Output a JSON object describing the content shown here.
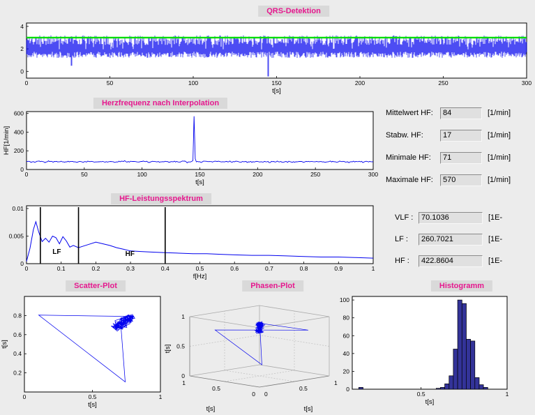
{
  "colors": {
    "window_bg": "#ececec",
    "plot_bg": "#ffffff",
    "title_fg": "#e6188e",
    "title_bg": "#d9d9d9",
    "signal_blue": "#0000ee",
    "threshold_green": "#00dd00",
    "band_line_black": "#000000",
    "band_label_red": "#ff0000",
    "hist_fill": "#333399"
  },
  "titles": {
    "qrs": "QRS-Detektion",
    "hr": "Herzfrequenz nach Interpolation",
    "spectrum": "HF-Leistungsspektrum",
    "scatter": "Scatter-Plot",
    "phase": "Phasen-Plot",
    "hist": "Histogramm"
  },
  "hr_stats": {
    "rows": [
      {
        "label": "Mittelwert HF:",
        "value": "84",
        "unit": "[1/min]"
      },
      {
        "label": "Stabw. HF:",
        "value": "17",
        "unit": "[1/min]"
      },
      {
        "label": "Minimale HF:",
        "value": "71",
        "unit": "[1/min]"
      },
      {
        "label": "Maximale HF:",
        "value": "570",
        "unit": "[1/min]"
      }
    ]
  },
  "spectrum_stats": {
    "rows": [
      {
        "label": "VLF :",
        "value": "70.1036",
        "unit": "[1E-"
      },
      {
        "label": "LF :",
        "value": "260.7021",
        "unit": "[1E-"
      },
      {
        "label": "HF :",
        "value": "422.8604",
        "unit": "[1E-"
      }
    ]
  },
  "chart_data": [
    {
      "id": "qrs",
      "type": "line",
      "title": "QRS-Detektion",
      "xlabel": "t[s]",
      "xlim": [
        0,
        300
      ],
      "xticks": [
        0,
        50,
        100,
        150,
        200,
        250,
        300
      ],
      "ylim": [
        -0.6,
        4.3
      ],
      "yticks": [
        0,
        2,
        4
      ],
      "duration_s": 300,
      "heart_rate_bpm": 84,
      "baseline_range": [
        1.2,
        1.75
      ],
      "peak_range": [
        2.35,
        3.2
      ],
      "threshold": 3.0,
      "artifacts": [
        {
          "t": 27,
          "min": 0.5
        },
        {
          "t": 145,
          "min": -0.45
        }
      ]
    },
    {
      "id": "hr",
      "type": "line",
      "title": "Herzfrequenz nach Interpolation",
      "xlabel": "t[s]",
      "ylabel": "HF[1/min]",
      "xlim": [
        0,
        300
      ],
      "xticks": [
        0,
        50,
        100,
        150,
        200,
        250,
        300
      ],
      "ylim": [
        0,
        620
      ],
      "yticks": [
        0,
        200,
        400,
        600
      ],
      "mean": 84,
      "std": 17,
      "min": 71,
      "max": 570,
      "spike": {
        "t": 145,
        "value": 570
      },
      "range": [
        71,
        110
      ]
    },
    {
      "id": "spectrum",
      "type": "line",
      "title": "HF-Leistungsspektrum",
      "xlabel": "f[Hz]",
      "xlim": [
        0,
        1
      ],
      "xticks": [
        0,
        0.1,
        0.2,
        0.3,
        0.4,
        0.5,
        0.6,
        0.7,
        0.8,
        0.9,
        1
      ],
      "ylim": [
        0,
        0.0105
      ],
      "yticks": [
        0,
        0.005,
        0.01
      ],
      "band_lines": [
        0.04,
        0.15,
        0.4
      ],
      "labels": [
        {
          "text": "LF",
          "x": 0.075,
          "y": 0.0018
        },
        {
          "text": "HF",
          "x": 0.285,
          "y": 0.0014
        }
      ],
      "points": [
        [
          0,
          0.0004
        ],
        [
          0.01,
          0.0028
        ],
        [
          0.02,
          0.0062
        ],
        [
          0.027,
          0.0076
        ],
        [
          0.035,
          0.0058
        ],
        [
          0.045,
          0.004
        ],
        [
          0.055,
          0.0046
        ],
        [
          0.065,
          0.0039
        ],
        [
          0.075,
          0.005
        ],
        [
          0.085,
          0.0047
        ],
        [
          0.095,
          0.0036
        ],
        [
          0.105,
          0.0049
        ],
        [
          0.115,
          0.0041
        ],
        [
          0.125,
          0.003
        ],
        [
          0.135,
          0.0033
        ],
        [
          0.15,
          0.0029
        ],
        [
          0.165,
          0.0032
        ],
        [
          0.18,
          0.0035
        ],
        [
          0.2,
          0.0039
        ],
        [
          0.22,
          0.0036
        ],
        [
          0.24,
          0.0033
        ],
        [
          0.26,
          0.0029
        ],
        [
          0.28,
          0.0026
        ],
        [
          0.3,
          0.0023
        ],
        [
          0.33,
          0.0022
        ],
        [
          0.36,
          0.0021
        ],
        [
          0.4,
          0.002
        ],
        [
          0.44,
          0.0019
        ],
        [
          0.48,
          0.0018
        ],
        [
          0.52,
          0.0018
        ],
        [
          0.56,
          0.0017
        ],
        [
          0.6,
          0.0016
        ],
        [
          0.65,
          0.0015
        ],
        [
          0.7,
          0.0015
        ],
        [
          0.75,
          0.0014
        ],
        [
          0.8,
          0.0013
        ],
        [
          0.85,
          0.0012
        ],
        [
          0.9,
          0.0012
        ],
        [
          0.95,
          0.0011
        ],
        [
          1,
          0.001
        ]
      ]
    },
    {
      "id": "scatter",
      "type": "scatter",
      "title": "Scatter-Plot",
      "xlabel": "t[s]",
      "ylabel": "t[s]",
      "xlim": [
        0,
        1
      ],
      "ylim": [
        0,
        1
      ],
      "xticks": [
        0,
        0.5,
        1
      ],
      "yticks": [
        0.2,
        0.4,
        0.6,
        0.8
      ],
      "cluster_center": 0.73,
      "cluster_range": [
        0.6,
        0.88
      ],
      "outlier_interval": 0.105,
      "n_points": 170
    },
    {
      "id": "phase",
      "type": "scatter",
      "title": "Phasen-Plot",
      "xlabel": "t[s]",
      "ylabel": "t[s]",
      "zlabel": "t[s]",
      "ticks": [
        0,
        0.5,
        1
      ],
      "lims": [
        0,
        1
      ]
    },
    {
      "id": "hist",
      "type": "bar",
      "title": "Histogramm",
      "xlabel": "t[s]",
      "xlim": [
        0.1,
        1
      ],
      "xticks": [
        0.5,
        1
      ],
      "ylim": [
        0,
        104
      ],
      "yticks": [
        0,
        20,
        40,
        60,
        80,
        100
      ],
      "bin_width": 0.025,
      "bins": [
        {
          "x": 0.15,
          "v": 2
        },
        {
          "x": 0.6,
          "v": 1
        },
        {
          "x": 0.625,
          "v": 2
        },
        {
          "x": 0.65,
          "v": 6
        },
        {
          "x": 0.675,
          "v": 15
        },
        {
          "x": 0.7,
          "v": 45
        },
        {
          "x": 0.725,
          "v": 100
        },
        {
          "x": 0.75,
          "v": 96
        },
        {
          "x": 0.775,
          "v": 56
        },
        {
          "x": 0.8,
          "v": 54
        },
        {
          "x": 0.825,
          "v": 13
        },
        {
          "x": 0.85,
          "v": 5
        },
        {
          "x": 0.875,
          "v": 2
        }
      ]
    }
  ]
}
